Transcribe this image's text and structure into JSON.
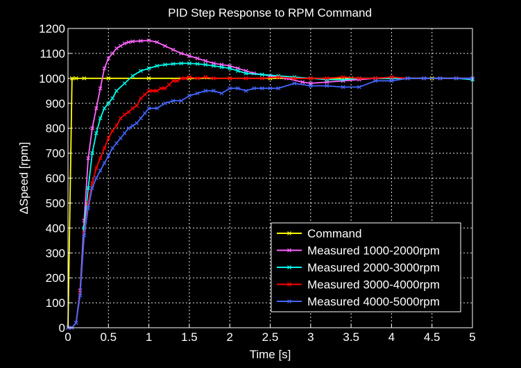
{
  "chart_data": {
    "type": "line",
    "title": "PID Step Response to RPM Command",
    "xlabel": "Time [s]",
    "ylabel": "ΔSpeed [rpm]",
    "xlim": [
      0,
      5
    ],
    "ylim": [
      0,
      1200
    ],
    "xticks": [
      "0",
      "0.5",
      "1",
      "1.5",
      "2",
      "2.5",
      "3",
      "3.5",
      "4",
      "4.5",
      "5"
    ],
    "yticks": [
      "0",
      "100",
      "200",
      "300",
      "400",
      "500",
      "600",
      "700",
      "800",
      "900",
      "1000",
      "1100",
      "1200"
    ],
    "grid": true,
    "legend_position": "bottom-right",
    "background": "#000000",
    "series": [
      {
        "name": "Command",
        "color": "#ffff00",
        "x": [
          0,
          0.05,
          0.1,
          0.2,
          0.5,
          1,
          1.5,
          2,
          2.5,
          3,
          3.5,
          4,
          4.5,
          5
        ],
        "values": [
          0,
          1000,
          1000,
          1000,
          1000,
          1000,
          1000,
          1000,
          1000,
          1000,
          1000,
          1000,
          1000,
          1000
        ]
      },
      {
        "name": "Measured 1000-2000rpm",
        "color": "#ff66ff",
        "x": [
          0,
          0.05,
          0.1,
          0.15,
          0.2,
          0.25,
          0.3,
          0.35,
          0.4,
          0.45,
          0.5,
          0.55,
          0.6,
          0.65,
          0.7,
          0.75,
          0.8,
          0.9,
          1.0,
          1.1,
          1.2,
          1.3,
          1.4,
          1.5,
          1.6,
          1.7,
          1.8,
          1.9,
          2.0,
          2.1,
          2.2,
          2.3,
          2.5,
          2.7,
          2.9,
          3.0,
          3.2,
          3.4,
          3.6,
          3.8,
          4.0,
          4.2,
          4.4,
          4.6,
          4.8,
          5.0
        ],
        "values": [
          0,
          0,
          20,
          150,
          430,
          680,
          800,
          880,
          960,
          1040,
          1080,
          1100,
          1120,
          1130,
          1140,
          1145,
          1148,
          1150,
          1152,
          1145,
          1130,
          1115,
          1100,
          1090,
          1080,
          1070,
          1060,
          1055,
          1050,
          1040,
          1030,
          1020,
          1010,
          1000,
          985,
          980,
          985,
          990,
          995,
          1000,
          1000,
          1000,
          1000,
          1000,
          1000,
          1000
        ]
      },
      {
        "name": "Measured 2000-3000rpm",
        "color": "#00ffee",
        "x": [
          0,
          0.05,
          0.1,
          0.15,
          0.2,
          0.25,
          0.3,
          0.35,
          0.4,
          0.45,
          0.5,
          0.55,
          0.6,
          0.7,
          0.8,
          0.9,
          1.0,
          1.1,
          1.2,
          1.3,
          1.4,
          1.5,
          1.6,
          1.7,
          1.8,
          1.9,
          2.0,
          2.1,
          2.2,
          2.4,
          2.6,
          2.8,
          3.0,
          3.2,
          3.4,
          3.6,
          3.8,
          4.0,
          4.2,
          4.4,
          4.6,
          4.8,
          5.0
        ],
        "values": [
          0,
          0,
          20,
          140,
          400,
          560,
          700,
          780,
          840,
          880,
          900,
          920,
          950,
          980,
          1010,
          1030,
          1040,
          1050,
          1055,
          1058,
          1060,
          1060,
          1058,
          1055,
          1050,
          1045,
          1040,
          1030,
          1020,
          1015,
          1010,
          1005,
          1000,
          995,
          995,
          1000,
          1000,
          1000,
          1000,
          1000,
          1000,
          1000,
          995
        ]
      },
      {
        "name": "Measured 3000-4000rpm",
        "color": "#ff0000",
        "x": [
          0,
          0.05,
          0.1,
          0.15,
          0.2,
          0.25,
          0.3,
          0.35,
          0.4,
          0.45,
          0.5,
          0.55,
          0.6,
          0.65,
          0.7,
          0.75,
          0.8,
          0.85,
          0.9,
          0.95,
          1.0,
          1.05,
          1.1,
          1.15,
          1.2,
          1.25,
          1.3,
          1.35,
          1.4,
          1.45,
          1.5,
          1.6,
          1.7,
          1.8,
          2.0,
          2.2,
          2.4,
          2.6,
          2.8,
          3.0,
          3.2,
          3.4,
          3.6,
          3.8,
          4.0,
          4.2,
          4.4,
          4.6,
          4.8,
          5.0
        ],
        "values": [
          0,
          0,
          20,
          140,
          380,
          500,
          580,
          640,
          680,
          720,
          760,
          790,
          810,
          840,
          855,
          865,
          880,
          890,
          920,
          935,
          950,
          950,
          950,
          960,
          960,
          975,
          990,
          990,
          1000,
          1000,
          1005,
          1000,
          1005,
          1000,
          1000,
          1000,
          1000,
          1005,
          1000,
          1000,
          1000,
          1005,
          1000,
          1000,
          1005,
          1000,
          1000,
          1000,
          1000,
          1000
        ]
      },
      {
        "name": "Measured 4000-5000rpm",
        "color": "#4466ff",
        "x": [
          0,
          0.05,
          0.1,
          0.15,
          0.2,
          0.25,
          0.3,
          0.35,
          0.4,
          0.45,
          0.5,
          0.55,
          0.6,
          0.65,
          0.7,
          0.75,
          0.8,
          0.85,
          0.9,
          0.95,
          1.0,
          1.1,
          1.2,
          1.3,
          1.4,
          1.5,
          1.6,
          1.7,
          1.8,
          1.9,
          2.0,
          2.1,
          2.2,
          2.3,
          2.4,
          2.5,
          2.6,
          2.8,
          3.0,
          3.2,
          3.4,
          3.6,
          3.8,
          4.0,
          4.2,
          4.4,
          4.6,
          4.8,
          5.0
        ],
        "values": [
          0,
          0,
          20,
          130,
          370,
          480,
          560,
          600,
          630,
          660,
          690,
          720,
          740,
          760,
          780,
          800,
          810,
          820,
          840,
          860,
          880,
          880,
          900,
          910,
          910,
          930,
          940,
          950,
          950,
          940,
          960,
          960,
          950,
          960,
          960,
          960,
          960,
          980,
          970,
          970,
          965,
          965,
          990,
          990,
          1000,
          1000,
          1000,
          1000,
          1000
        ]
      }
    ]
  }
}
